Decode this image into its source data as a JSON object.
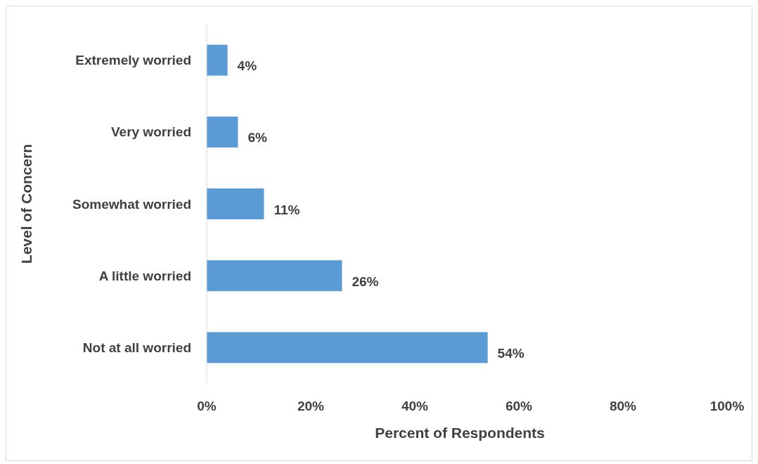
{
  "chart_data": {
    "type": "bar",
    "orientation": "horizontal",
    "xlabel": "Percent of Respondents",
    "ylabel": "Level of Concern",
    "categories": [
      "Extremely worried",
      "Very worried",
      "Somewhat worried",
      "A little worried",
      "Not at all worried"
    ],
    "values": [
      4,
      6,
      11,
      26,
      54
    ],
    "color": "#5b9bd5",
    "value_labels": [
      "4%",
      "6%",
      "11%",
      "26%",
      "54%"
    ],
    "xlim": [
      0,
      100
    ],
    "xticks": [
      {
        "value": 0,
        "label": "0%"
      },
      {
        "value": 20,
        "label": "20%"
      },
      {
        "value": 40,
        "label": "40%"
      },
      {
        "value": 60,
        "label": "60%"
      },
      {
        "value": 80,
        "label": "80%"
      },
      {
        "value": 100,
        "label": "100%"
      }
    ],
    "grid": false
  }
}
